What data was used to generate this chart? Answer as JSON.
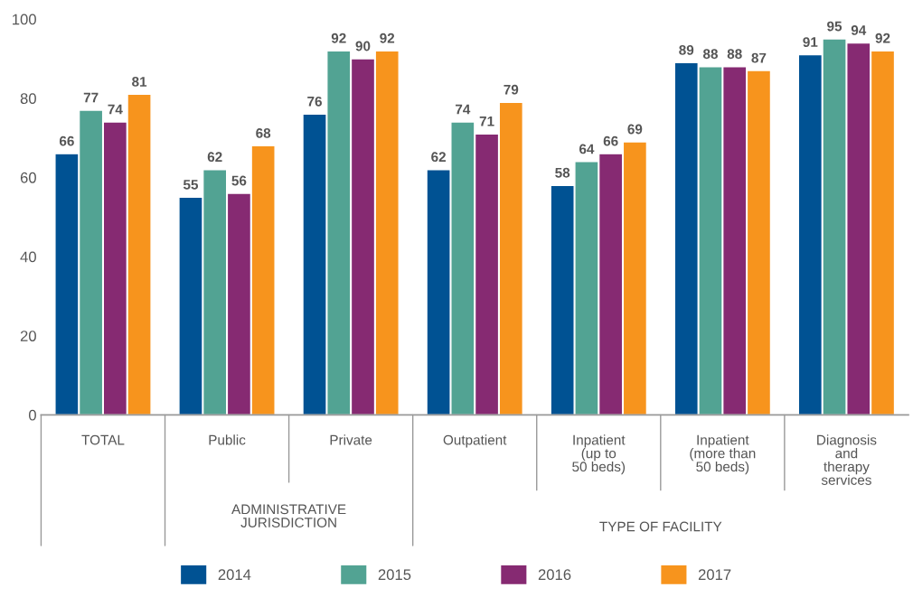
{
  "chart_data": {
    "type": "bar",
    "categories": [
      "TOTAL",
      "Public",
      "Private",
      "Outpatient",
      "Inpatient\n(up to\n50 beds)",
      "Inpatient\n(more than\n50 beds)",
      "Diagnosis\nand\ntherapy\nservices"
    ],
    "series": [
      {
        "name": "2014",
        "color": "#005293",
        "values": [
          66,
          55,
          76,
          62,
          58,
          89,
          91
        ]
      },
      {
        "name": "2015",
        "color": "#52a393",
        "values": [
          77,
          62,
          92,
          74,
          64,
          88,
          95
        ]
      },
      {
        "name": "2016",
        "color": "#862a72",
        "values": [
          74,
          56,
          90,
          71,
          66,
          88,
          94
        ]
      },
      {
        "name": "2017",
        "color": "#f7941d",
        "values": [
          81,
          68,
          92,
          79,
          69,
          87,
          92
        ]
      }
    ],
    "ylim": [
      0,
      100
    ],
    "yticks": [
      0,
      20,
      40,
      60,
      80,
      100
    ],
    "data_labels": true,
    "grid": false,
    "legend": "bottom",
    "annotations": [
      "ADMINISTRATIVE\nJURISDICTION",
      "TYPE OF FACILITY"
    ]
  }
}
